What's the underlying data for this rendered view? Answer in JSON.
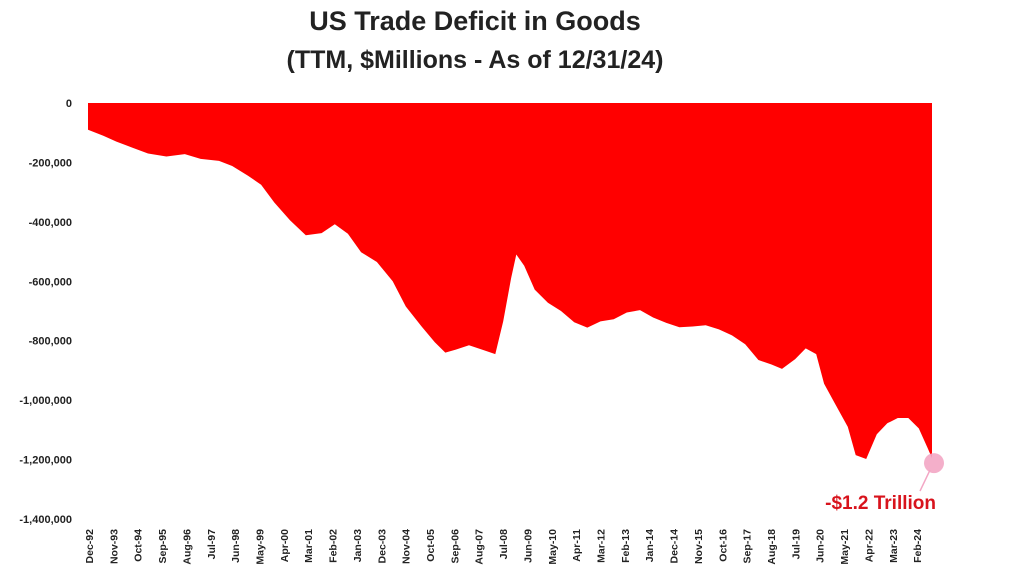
{
  "chart_data": {
    "type": "area",
    "title": "US Trade Deficit in Goods",
    "subtitle": "(TTM, $Millions - As of 12/31/24)",
    "xlabel": "",
    "ylabel": "",
    "ylim": [
      -1400000,
      0
    ],
    "grid": false,
    "legend": "none",
    "y_ticks": [
      "0",
      "-200,000",
      "-400,000",
      "-600,000",
      "-800,000",
      "-1,000,000",
      "-1,200,000",
      "-1,400,000"
    ],
    "x_ticks": [
      "Dec-92",
      "Nov-93",
      "Oct-94",
      "Sep-95",
      "Aug-96",
      "Jul-97",
      "Jun-98",
      "May-99",
      "Apr-00",
      "Mar-01",
      "Feb-02",
      "Jan-03",
      "Dec-03",
      "Nov-04",
      "Oct-05",
      "Sep-06",
      "Aug-07",
      "Jul-08",
      "Jun-09",
      "May-10",
      "Apr-11",
      "Mar-12",
      "Feb-13",
      "Jan-14",
      "Dec-14",
      "Nov-15",
      "Oct-16",
      "Sep-17",
      "Aug-18",
      "Jul-19",
      "Jun-20",
      "May-21",
      "Apr-22",
      "Mar-23",
      "Feb-24"
    ],
    "series": [
      {
        "values": [
          [
            1992.92,
            -90000
          ],
          [
            1993.5,
            -110000
          ],
          [
            1994.0,
            -130000
          ],
          [
            1994.6,
            -150000
          ],
          [
            1995.2,
            -170000
          ],
          [
            1995.9,
            -180000
          ],
          [
            1996.6,
            -172000
          ],
          [
            1997.2,
            -188000
          ],
          [
            1997.9,
            -195000
          ],
          [
            1998.4,
            -212000
          ],
          [
            1999.0,
            -245000
          ],
          [
            1999.5,
            -275000
          ],
          [
            2000.0,
            -335000
          ],
          [
            2000.6,
            -395000
          ],
          [
            2001.2,
            -445000
          ],
          [
            2001.8,
            -438000
          ],
          [
            2002.3,
            -408000
          ],
          [
            2002.8,
            -440000
          ],
          [
            2003.3,
            -502000
          ],
          [
            2003.9,
            -535000
          ],
          [
            2004.5,
            -600000
          ],
          [
            2005.0,
            -685000
          ],
          [
            2005.6,
            -752000
          ],
          [
            2006.1,
            -805000
          ],
          [
            2006.5,
            -840000
          ],
          [
            2006.9,
            -830000
          ],
          [
            2007.4,
            -815000
          ],
          [
            2007.9,
            -830000
          ],
          [
            2008.4,
            -845000
          ],
          [
            2008.7,
            -735000
          ],
          [
            2009.0,
            -590000
          ],
          [
            2009.2,
            -510000
          ],
          [
            2009.5,
            -548000
          ],
          [
            2009.9,
            -628000
          ],
          [
            2010.4,
            -672000
          ],
          [
            2010.9,
            -700000
          ],
          [
            2011.4,
            -738000
          ],
          [
            2011.9,
            -756000
          ],
          [
            2012.4,
            -735000
          ],
          [
            2012.9,
            -728000
          ],
          [
            2013.4,
            -705000
          ],
          [
            2013.9,
            -697000
          ],
          [
            2014.4,
            -722000
          ],
          [
            2014.9,
            -740000
          ],
          [
            2015.4,
            -755000
          ],
          [
            2015.9,
            -752000
          ],
          [
            2016.4,
            -748000
          ],
          [
            2016.9,
            -762000
          ],
          [
            2017.4,
            -782000
          ],
          [
            2017.9,
            -812000
          ],
          [
            2018.4,
            -865000
          ],
          [
            2018.9,
            -880000
          ],
          [
            2019.3,
            -895000
          ],
          [
            2019.8,
            -862000
          ],
          [
            2020.2,
            -826000
          ],
          [
            2020.6,
            -845000
          ],
          [
            2020.9,
            -945000
          ],
          [
            2021.3,
            -1010000
          ],
          [
            2021.8,
            -1090000
          ],
          [
            2022.1,
            -1185000
          ],
          [
            2022.5,
            -1198000
          ],
          [
            2022.9,
            -1115000
          ],
          [
            2023.3,
            -1078000
          ],
          [
            2023.7,
            -1060000
          ],
          [
            2024.1,
            -1060000
          ],
          [
            2024.5,
            -1095000
          ],
          [
            2024.83,
            -1160000
          ],
          [
            2025.0,
            -1195000
          ]
        ]
      }
    ],
    "annotation": {
      "text": "-$1.2 Trillion",
      "x": 2025.0,
      "y": -1195000,
      "color": "#d8131c"
    },
    "colors": {
      "area": "#ff0000",
      "highlight": "#f3a6c4",
      "annotation": "#d8131c",
      "text": "#222222"
    }
  }
}
